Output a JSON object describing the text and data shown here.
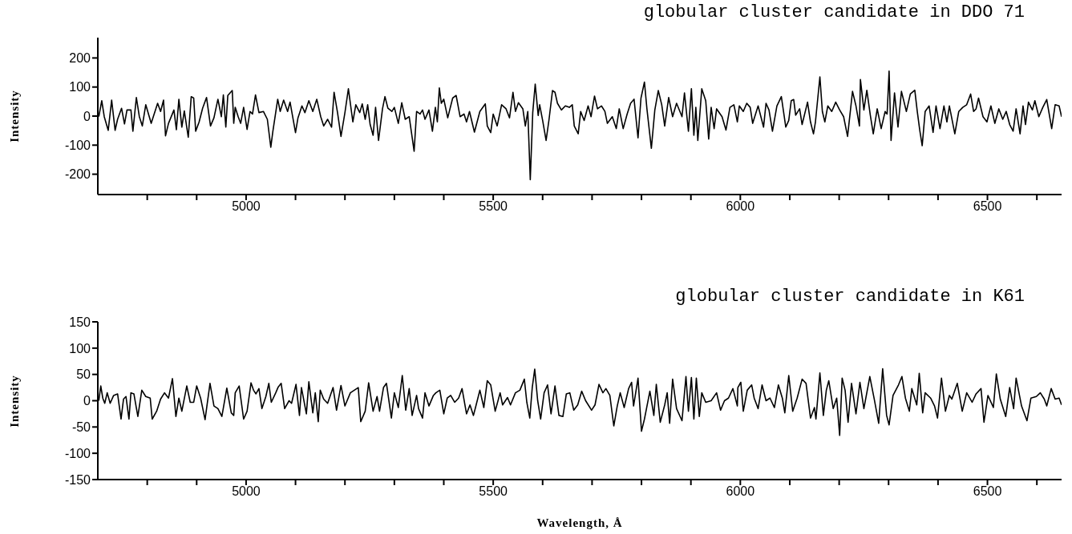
{
  "chart_data": [
    {
      "type": "line",
      "title": "globular cluster candidate in DDO 71",
      "ylabel": "Intensity",
      "color": "#000000",
      "line_style": "solid",
      "x": [
        4702,
        4708,
        4713,
        4721,
        4728,
        4735,
        4740,
        4748,
        4754,
        4759,
        4767,
        4771,
        4778,
        4784,
        4790,
        4797,
        4808,
        4821,
        4827,
        4833,
        4837,
        4843,
        4854,
        4859,
        4864,
        4870,
        4875,
        4883,
        4889,
        4894,
        4898,
        4905,
        4912,
        4920,
        4928,
        4935,
        4943,
        4950,
        4954,
        4959,
        4963,
        4972,
        4975,
        4978,
        4984,
        4989,
        4995,
        5002,
        5008,
        5013,
        5019,
        5026,
        5035,
        5043,
        5050,
        5054,
        5064,
        5069,
        5076,
        5084,
        5089,
        5100,
        5105,
        5113,
        5119,
        5127,
        5135,
        5143,
        5151,
        5157,
        5165,
        5173,
        5178,
        5185,
        5192,
        5200,
        5207,
        5216,
        5222,
        5230,
        5235,
        5241,
        5246,
        5251,
        5257,
        5262,
        5268,
        5276,
        5281,
        5287,
        5295,
        5300,
        5308,
        5315,
        5322,
        5330,
        5340,
        5345,
        5352,
        5357,
        5362,
        5370,
        5377,
        5383,
        5387,
        5391,
        5395,
        5400,
        5408,
        5418,
        5425,
        5433,
        5441,
        5446,
        5452,
        5462,
        5473,
        5484,
        5488,
        5495,
        5500,
        5508,
        5517,
        5526,
        5533,
        5540,
        5545,
        5551,
        5560,
        5565,
        5570,
        5575,
        5580,
        5585,
        5591,
        5594,
        5600,
        5607,
        5613,
        5620,
        5625,
        5630,
        5638,
        5646,
        5654,
        5660,
        5664,
        5672,
        5677,
        5684,
        5692,
        5698,
        5705,
        5711,
        5719,
        5726,
        5731,
        5741,
        5749,
        5755,
        5763,
        5771,
        5778,
        5785,
        5793,
        5799,
        5806,
        5811,
        5820,
        5827,
        5834,
        5841,
        5847,
        5855,
        5863,
        5871,
        5882,
        5887,
        5895,
        5901,
        5906,
        5910,
        5914,
        5922,
        5930,
        5936,
        5941,
        5947,
        5952,
        5963,
        5971,
        5979,
        5987,
        5994,
        5998,
        6006,
        6013,
        6020,
        6025,
        6036,
        6047,
        6052,
        6058,
        6065,
        6074,
        6083,
        6092,
        6098,
        6103,
        6108,
        6112,
        6120,
        6125,
        6136,
        6142,
        6148,
        6152,
        6161,
        6166,
        6171,
        6177,
        6185,
        6193,
        6201,
        6209,
        6217,
        6227,
        6234,
        6241,
        6243,
        6250,
        6256,
        6263,
        6269,
        6277,
        6285,
        6293,
        6297,
        6301,
        6305,
        6312,
        6319,
        6326,
        6336,
        6344,
        6353,
        6358,
        6363,
        6368,
        6374,
        6382,
        6390,
        6396,
        6404,
        6412,
        6418,
        6423,
        6434,
        6442,
        6450,
        6458,
        6466,
        6472,
        6477,
        6482,
        6491,
        6499,
        6507,
        6515,
        6523,
        6531,
        6538,
        6545,
        6552,
        6558,
        6566,
        6572,
        6577,
        6583,
        6591,
        6596,
        6604,
        6612,
        6620,
        6630,
        6637,
        6645,
        6650
      ],
      "values": [
        -2,
        53,
        -2,
        -49,
        55,
        -49,
        -11,
        27,
        -27,
        21,
        21,
        -52,
        64,
        -2,
        -34,
        39,
        -25,
        44,
        16,
        55,
        -68,
        -25,
        21,
        -47,
        58,
        -38,
        18,
        -73,
        67,
        62,
        -52,
        -20,
        27,
        64,
        -34,
        -6,
        58,
        -2,
        73,
        -38,
        71,
        88,
        -25,
        30,
        -2,
        -25,
        30,
        -46,
        16,
        7,
        73,
        12,
        16,
        -11,
        -107,
        -55,
        58,
        16,
        55,
        16,
        48,
        -57,
        -6,
        35,
        12,
        53,
        16,
        58,
        -2,
        -34,
        -11,
        -38,
        82,
        12,
        -70,
        12,
        94,
        -20,
        39,
        12,
        42,
        -11,
        39,
        -29,
        -66,
        30,
        -84,
        25,
        67,
        27,
        16,
        30,
        -25,
        46,
        -11,
        -2,
        -121,
        16,
        7,
        21,
        -11,
        21,
        -52,
        30,
        -20,
        97,
        44,
        58,
        -6,
        62,
        71,
        -2,
        7,
        -20,
        16,
        -55,
        16,
        42,
        -34,
        -57,
        7,
        -34,
        39,
        25,
        -6,
        82,
        16,
        46,
        25,
        -34,
        16,
        -219,
        12,
        110,
        2,
        39,
        -15,
        -84,
        -11,
        88,
        82,
        44,
        21,
        35,
        30,
        39,
        -34,
        -61,
        16,
        -15,
        35,
        -2,
        69,
        25,
        35,
        16,
        -25,
        -2,
        -43,
        25,
        -43,
        7,
        44,
        58,
        -75,
        62,
        117,
        25,
        -111,
        21,
        88,
        39,
        -34,
        64,
        -2,
        44,
        -2,
        80,
        -52,
        94,
        -66,
        30,
        -84,
        94,
        53,
        -79,
        30,
        -43,
        25,
        -2,
        -48,
        30,
        39,
        -20,
        35,
        16,
        44,
        30,
        -25,
        35,
        -38,
        44,
        21,
        -52,
        35,
        67,
        -38,
        -15,
        53,
        57,
        3,
        25,
        -29,
        48,
        -20,
        -61,
        -20,
        135,
        16,
        -20,
        35,
        16,
        48,
        21,
        -2,
        -70,
        85,
        35,
        -34,
        126,
        21,
        89,
        3,
        -61,
        25,
        -43,
        16,
        7,
        155,
        -84,
        80,
        -38,
        85,
        16,
        76,
        89,
        16,
        -48,
        -102,
        16,
        35,
        -56,
        35,
        -43,
        35,
        -20,
        35,
        -61,
        16,
        30,
        39,
        76,
        16,
        25,
        62,
        -2,
        -20,
        35,
        -25,
        25,
        -11,
        16,
        -29,
        -52,
        25,
        -61,
        35,
        -29,
        48,
        21,
        53,
        -2,
        30,
        57,
        -43,
        39,
        35,
        -2
      ],
      "xlim": [
        4700,
        6650
      ],
      "xticks": [
        {
          "value": 4800,
          "label": null
        },
        {
          "value": 4900,
          "label": null
        },
        5000,
        {
          "value": 5100,
          "label": null
        },
        {
          "value": 5200,
          "label": null
        },
        {
          "value": 5300,
          "label": null
        },
        {
          "value": 5400,
          "label": null
        },
        5500,
        {
          "value": 5600,
          "label": null
        },
        {
          "value": 5700,
          "label": null
        },
        {
          "value": 5800,
          "label": null
        },
        {
          "value": 5900,
          "label": null
        },
        6000,
        {
          "value": 6100,
          "label": null
        },
        {
          "value": 6200,
          "label": null
        },
        {
          "value": 6300,
          "label": null
        },
        {
          "value": 6400,
          "label": null
        },
        6500,
        {
          "value": 6600,
          "label": null
        }
      ],
      "ylim": [
        -270,
        270
      ],
      "yticks": [
        -200,
        -100,
        0,
        100,
        200
      ]
    },
    {
      "type": "line",
      "title": "globular cluster candidate in K61",
      "ylabel": "Intensity",
      "xlabel": "Wavelength, Å",
      "color": "#000000",
      "line_style": "solid",
      "x": [
        4702,
        4706,
        4710,
        4714,
        4719,
        4725,
        4732,
        4740,
        4747,
        4752,
        4757,
        4763,
        4767,
        4773,
        4781,
        4789,
        4797,
        4806,
        4810,
        4819,
        4827,
        4835,
        4843,
        4851,
        4858,
        4864,
        4870,
        4880,
        4887,
        4894,
        4900,
        4908,
        4917,
        4927,
        4935,
        4943,
        4951,
        4961,
        4970,
        4975,
        4978,
        4986,
        4995,
        5002,
        5010,
        5015,
        5020,
        5026,
        5032,
        5040,
        5046,
        5051,
        5060,
        5065,
        5071,
        5078,
        5087,
        5092,
        5101,
        5108,
        5112,
        5122,
        5127,
        5135,
        5140,
        5146,
        5150,
        5157,
        5165,
        5176,
        5183,
        5192,
        5200,
        5211,
        5219,
        5227,
        5232,
        5241,
        5248,
        5257,
        5265,
        5270,
        5278,
        5284,
        5294,
        5300,
        5308,
        5316,
        5323,
        5330,
        5336,
        5345,
        5349,
        5357,
        5362,
        5370,
        5379,
        5384,
        5392,
        5400,
        5407,
        5414,
        5422,
        5430,
        5437,
        5446,
        5453,
        5460,
        5465,
        5473,
        5481,
        5488,
        5495,
        5504,
        5514,
        5519,
        5529,
        5535,
        5545,
        5554,
        5563,
        5568,
        5574,
        5579,
        5584,
        5590,
        5596,
        5603,
        5610,
        5617,
        5625,
        5633,
        5641,
        5648,
        5655,
        5663,
        5671,
        5679,
        5687,
        5699,
        5706,
        5714,
        5722,
        5728,
        5736,
        5744,
        5751,
        5757,
        5765,
        5774,
        5780,
        5784,
        5793,
        5800,
        5806,
        5817,
        5825,
        5830,
        5838,
        5847,
        5852,
        5857,
        5863,
        5871,
        5882,
        5890,
        5895,
        5901,
        5906,
        5911,
        5917,
        5922,
        5930,
        5941,
        5952,
        5960,
        5968,
        5976,
        5985,
        5994,
        5995,
        6001,
        6006,
        6014,
        6023,
        6028,
        6036,
        6044,
        6052,
        6060,
        6069,
        6077,
        6085,
        6090,
        6098,
        6106,
        6115,
        6125,
        6133,
        6142,
        6150,
        6153,
        6161,
        6168,
        6174,
        6179,
        6188,
        6195,
        6201,
        6206,
        6212,
        6218,
        6225,
        6234,
        6242,
        6250,
        6262,
        6271,
        6280,
        6288,
        6296,
        6301,
        6309,
        6320,
        6327,
        6334,
        6342,
        6347,
        6357,
        6362,
        6369,
        6374,
        6385,
        6393,
        6399,
        6407,
        6415,
        6423,
        6428,
        6439,
        6449,
        6458,
        6469,
        6477,
        6487,
        6493,
        6501,
        6512,
        6518,
        6526,
        6537,
        6545,
        6553,
        6558,
        6569,
        6580,
        6588,
        6599,
        6607,
        6615,
        6620,
        6629,
        6637,
        6645,
        6650
      ],
      "values": [
        0,
        28,
        5,
        -5,
        15,
        -5,
        10,
        13,
        -35,
        3,
        8,
        -35,
        15,
        13,
        -30,
        20,
        8,
        5,
        -35,
        -20,
        3,
        15,
        5,
        42,
        -30,
        5,
        -20,
        28,
        -3,
        -3,
        28,
        5,
        -36,
        33,
        -10,
        -15,
        -30,
        24,
        -23,
        -28,
        15,
        28,
        -35,
        -20,
        34,
        20,
        13,
        23,
        -15,
        8,
        33,
        -3,
        15,
        26,
        33,
        -15,
        0,
        -5,
        31,
        -28,
        25,
        -25,
        36,
        -23,
        15,
        -40,
        20,
        3,
        -5,
        25,
        -18,
        29,
        -10,
        15,
        20,
        25,
        -40,
        -20,
        34,
        -20,
        8,
        -20,
        25,
        33,
        -33,
        15,
        -13,
        48,
        -18,
        23,
        -28,
        10,
        -15,
        -33,
        15,
        -10,
        10,
        15,
        20,
        -25,
        5,
        10,
        -3,
        5,
        23,
        -25,
        -8,
        -28,
        -10,
        20,
        -13,
        38,
        30,
        -20,
        15,
        -8,
        6,
        -8,
        15,
        20,
        41,
        -3,
        -33,
        25,
        60,
        0,
        -35,
        15,
        30,
        -25,
        28,
        -28,
        -30,
        13,
        15,
        -18,
        -8,
        18,
        0,
        -18,
        -8,
        31,
        15,
        23,
        10,
        -48,
        -10,
        15,
        -13,
        23,
        35,
        -10,
        43,
        -58,
        -35,
        18,
        -28,
        31,
        -41,
        -8,
        15,
        -43,
        41,
        -15,
        -38,
        46,
        -20,
        44,
        -35,
        43,
        -30,
        15,
        -3,
        0,
        15,
        -18,
        0,
        5,
        23,
        -10,
        25,
        35,
        -20,
        20,
        30,
        5,
        -15,
        30,
        0,
        5,
        -13,
        30,
        5,
        -23,
        48,
        -20,
        5,
        41,
        33,
        -33,
        -13,
        -35,
        53,
        -28,
        20,
        38,
        -15,
        5,
        -66,
        43,
        20,
        -41,
        33,
        -25,
        35,
        -15,
        46,
        3,
        -43,
        61,
        -28,
        -46,
        10,
        30,
        46,
        5,
        -20,
        23,
        -8,
        52,
        -23,
        15,
        5,
        -10,
        -33,
        43,
        -20,
        10,
        3,
        33,
        -20,
        15,
        -3,
        13,
        23,
        -41,
        10,
        -13,
        51,
        3,
        -30,
        25,
        -15,
        43,
        -10,
        -38,
        5,
        8,
        15,
        3,
        -10,
        23,
        3,
        5,
        -8
      ],
      "xlim": [
        4700,
        6650
      ],
      "xticks": [
        {
          "value": 4800,
          "label": null
        },
        {
          "value": 4900,
          "label": null
        },
        5000,
        {
          "value": 5100,
          "label": null
        },
        {
          "value": 5200,
          "label": null
        },
        {
          "value": 5300,
          "label": null
        },
        {
          "value": 5400,
          "label": null
        },
        5500,
        {
          "value": 5600,
          "label": null
        },
        {
          "value": 5700,
          "label": null
        },
        {
          "value": 5800,
          "label": null
        },
        {
          "value": 5900,
          "label": null
        },
        6000,
        {
          "value": 6100,
          "label": null
        },
        {
          "value": 6200,
          "label": null
        },
        {
          "value": 6300,
          "label": null
        },
        {
          "value": 6400,
          "label": null
        },
        6500,
        {
          "value": 6600,
          "label": null
        }
      ],
      "ylim": [
        -150,
        150
      ],
      "yticks": [
        -150,
        -100,
        -50,
        0,
        50,
        100,
        150
      ]
    }
  ]
}
